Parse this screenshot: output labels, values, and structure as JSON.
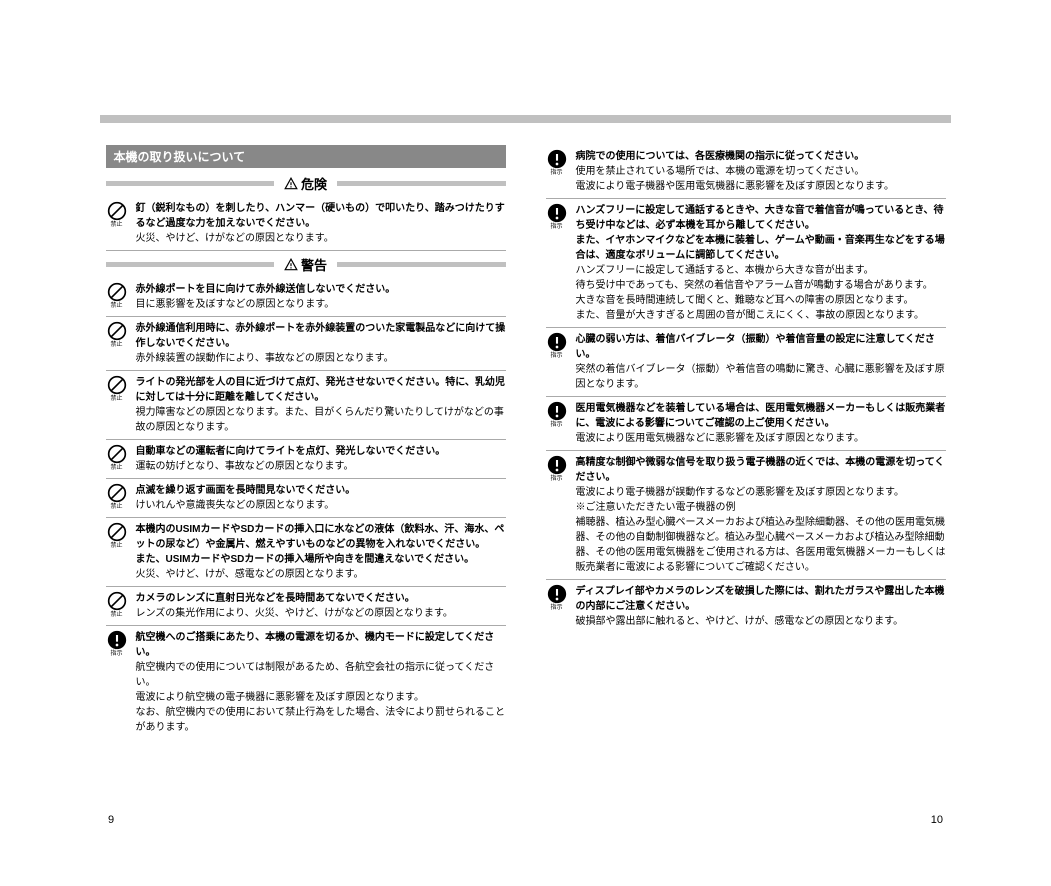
{
  "colors": {
    "titleBarBg": "#888888",
    "titleBarText": "#ffffff",
    "dividerBar": "#c0c0c0",
    "itemBorder": "#aaaaaa",
    "text": "#000000"
  },
  "pageLeft": "9",
  "pageRight": "10",
  "sectionTitle": "本機の取り扱いについて",
  "danger": {
    "label": "危険",
    "items": [
      {
        "icon": "prohibit",
        "iconLabel": "禁止",
        "bold": "釘（鋭利なもの）を刺したり、ハンマー（硬いもの）で叩いたり、踏みつけたりするなど過度な力を加えないでください。",
        "text": "火災、やけど、けがなどの原因となります。"
      }
    ]
  },
  "warning": {
    "label": "警告",
    "itemsLeft": [
      {
        "icon": "prohibit",
        "iconLabel": "禁止",
        "bold": "赤外線ポートを目に向けて赤外線送信しないでください。",
        "text": "目に悪影響を及ぼすなどの原因となります。"
      },
      {
        "icon": "prohibit",
        "iconLabel": "禁止",
        "bold": "赤外線通信利用時に、赤外線ポートを赤外線装置のついた家電製品などに向けて操作しないでください。",
        "text": "赤外線装置の誤動作により、事故などの原因となります。"
      },
      {
        "icon": "prohibit",
        "iconLabel": "禁止",
        "bold": "ライトの発光部を人の目に近づけて点灯、発光させないでください。特に、乳幼児に対しては十分に距離を離してください。",
        "text": "視力障害などの原因となります。また、目がくらんだり驚いたりしてけがなどの事故の原因となります。"
      },
      {
        "icon": "prohibit",
        "iconLabel": "禁止",
        "bold": "自動車などの運転者に向けてライトを点灯、発光しないでください。",
        "text": "運転の妨げとなり、事故などの原因となります。"
      },
      {
        "icon": "prohibit",
        "iconLabel": "禁止",
        "bold": "点滅を繰り返す画面を長時間見ないでください。",
        "text": "けいれんや意識喪失などの原因となります。"
      },
      {
        "icon": "prohibit",
        "iconLabel": "禁止",
        "bold": "本機内のUSIMカードやSDカードの挿入口に水などの液体（飲料水、汗、海水、ペットの尿など）や金属片、燃えやすいものなどの異物を入れないでください。",
        "bold2": "また、USIMカードやSDカードの挿入場所や向きを間違えないでください。",
        "text": "火災、やけど、けが、感電などの原因となります。"
      },
      {
        "icon": "prohibit",
        "iconLabel": "禁止",
        "bold": "カメラのレンズに直射日光などを長時間あてないでください。",
        "text": "レンズの集光作用により、火災、やけど、けがなどの原因となります。"
      },
      {
        "icon": "instruct",
        "iconLabel": "指示",
        "bold": "航空機へのご搭乗にあたり、本機の電源を切るか、機内モードに設定してください。",
        "text": "航空機内での使用については制限があるため、各航空会社の指示に従ってください。",
        "text2": "電波により航空機の電子機器に悪影響を及ぼす原因となります。",
        "text3": "なお、航空機内での使用において禁止行為をした場合、法令により罰せられることがあります。"
      }
    ],
    "itemsRight": [
      {
        "icon": "instruct",
        "iconLabel": "指示",
        "bold": "病院での使用については、各医療機関の指示に従ってください。",
        "text": "使用を禁止されている場所では、本機の電源を切ってください。",
        "text2": "電波により電子機器や医用電気機器に悪影響を及ぼす原因となります。"
      },
      {
        "icon": "instruct",
        "iconLabel": "指示",
        "bold": "ハンズフリーに設定して通話するときや、大きな音で着信音が鳴っているとき、待ち受け中などは、必ず本機を耳から離してください。",
        "bold2": "また、イヤホンマイクなどを本機に装着し、ゲームや動画・音楽再生などをする場合は、適度なボリュームに調節してください。",
        "text": "ハンズフリーに設定して通話すると、本機から大きな音が出ます。",
        "text2": "待ち受け中であっても、突然の着信音やアラーム音が鳴動する場合があります。",
        "text3": "大きな音を長時間連続して聞くと、難聴など耳への障害の原因となります。",
        "text4": "また、音量が大きすぎると周囲の音が聞こえにくく、事故の原因となります。"
      },
      {
        "icon": "instruct",
        "iconLabel": "指示",
        "bold": "心臓の弱い方は、着信バイブレータ（振動）や着信音量の設定に注意してください。",
        "text": "突然の着信バイブレータ（振動）や着信音の鳴動に驚き、心臓に悪影響を及ぼす原因となります。"
      },
      {
        "icon": "instruct",
        "iconLabel": "指示",
        "bold": "医用電気機器などを装着している場合は、医用電気機器メーカーもしくは販売業者に、電波による影響についてご確認の上ご使用ください。",
        "text": "電波により医用電気機器などに悪影響を及ぼす原因となります。"
      },
      {
        "icon": "instruct",
        "iconLabel": "指示",
        "bold": "高精度な制御や微弱な信号を取り扱う電子機器の近くでは、本機の電源を切ってください。",
        "text": "電波により電子機器が誤動作するなどの悪影響を及ぼす原因となります。",
        "text2": "※ご注意いただきたい電子機器の例",
        "text3": "補聴器、植込み型心臓ペースメーカおよび植込み型除細動器、その他の医用電気機器、その他の自動制御機器など。植込み型心臓ペースメーカおよび植込み型除細動器、その他の医用電気機器をご使用される方は、各医用電気機器メーカーもしくは販売業者に電波による影響についてご確認ください。"
      },
      {
        "icon": "instruct",
        "iconLabel": "指示",
        "bold": "ディスプレイ部やカメラのレンズを破損した際には、割れたガラスや露出した本機の内部にご注意ください。",
        "text": "破損部や露出部に触れると、やけど、けが、感電などの原因となります。"
      }
    ]
  }
}
